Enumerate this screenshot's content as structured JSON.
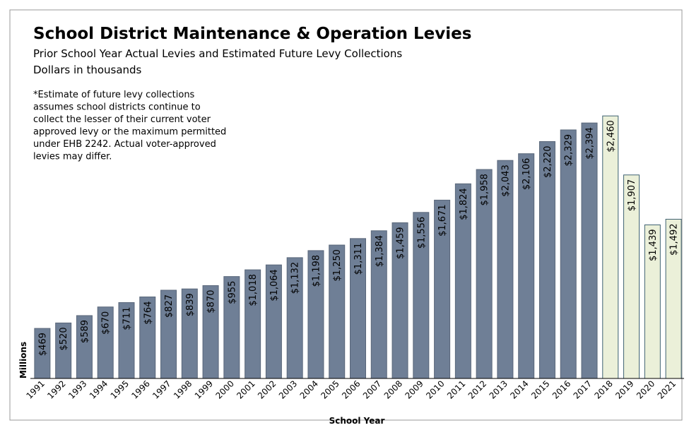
{
  "chart_data": {
    "type": "bar",
    "title": "School District Maintenance & Operation Levies",
    "subtitle": [
      "Prior School Year Actual Levies and Estimated Future Levy Collections",
      "Dollars in thousands"
    ],
    "annotation": [
      "*Estimate of future levy collections",
      "assumes school districts continue to",
      "collect the lesser of their current voter",
      "approved levy or the maximum permitted",
      "under EHB 2242.  Actual voter-approved",
      "levies may differ."
    ],
    "x_label": "School Year",
    "y_label": "Millions",
    "categories": [
      "1991",
      "1992",
      "1993",
      "1994",
      "1995",
      "1996",
      "1997",
      "1998",
      "1999",
      "2000",
      "2001",
      "2002",
      "2003",
      "2004",
      "2005",
      "2006",
      "2007",
      "2008",
      "2009",
      "2010",
      "2011",
      "2012",
      "2013",
      "2014",
      "2015",
      "2016",
      "2017",
      "2018",
      "2019",
      "2020",
      "2021"
    ],
    "values": [
      469,
      520,
      589,
      670,
      711,
      764,
      827,
      839,
      870,
      955,
      1018,
      1064,
      1132,
      1198,
      1250,
      1311,
      1384,
      1459,
      1556,
      1671,
      1824,
      1958,
      2043,
      2106,
      2220,
      2329,
      2394,
      2460,
      1907,
      1439,
      1492
    ],
    "value_labels": [
      "$469",
      "$520",
      "$589",
      "$670",
      "$711",
      "$764",
      "$827",
      "$839",
      "$870",
      "$955",
      "$1,018",
      "$1,064",
      "$1,132",
      "$1,198",
      "$1,250",
      "$1,311",
      "$1,384",
      "$1,459",
      "$1,556",
      "$1,671",
      "$1,824",
      "$1,958",
      "$2,043",
      "$2,106",
      "$2,220",
      "$2,329",
      "$2,394",
      "$2,460",
      "$1,907",
      "$1,439",
      "$1,492"
    ],
    "colors": [
      "#6f7f96",
      "#6f7f96",
      "#6f7f96",
      "#6f7f96",
      "#6f7f96",
      "#6f7f96",
      "#6f7f96",
      "#6f7f96",
      "#6f7f96",
      "#6f7f96",
      "#6f7f96",
      "#6f7f96",
      "#6f7f96",
      "#6f7f96",
      "#6f7f96",
      "#6f7f96",
      "#6f7f96",
      "#6f7f96",
      "#6f7f96",
      "#6f7f96",
      "#6f7f96",
      "#6f7f96",
      "#6f7f96",
      "#6f7f96",
      "#6f7f96",
      "#6f7f96",
      "#6f7f96",
      "#ebf0d9",
      "#ebf0d9",
      "#ebf0d9",
      "#ebf0d9"
    ]
  }
}
